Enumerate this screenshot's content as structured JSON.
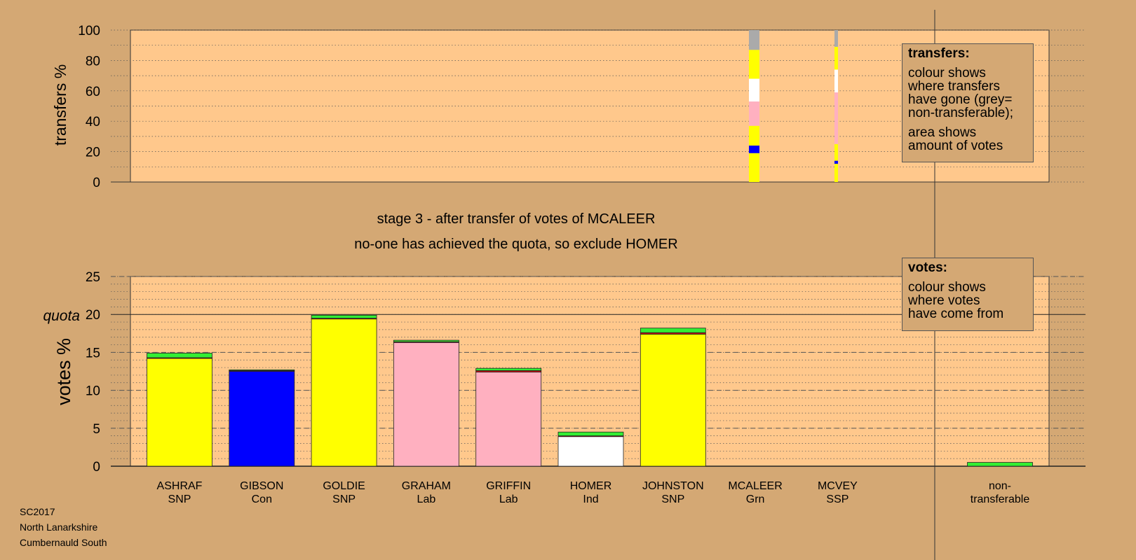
{
  "colors": {
    "background": "#d4a874",
    "plot_area": "#ffc88c",
    "SNP": "#ffff00",
    "Con": "#0000ff",
    "Lab": "#ffb0c0",
    "Ind": "#ffffff",
    "Grn": "#33ee33",
    "SSP": "#cc1111",
    "non_transferable": "#aaaaaa"
  },
  "stage_title": "stage 3 - after transfer of votes of MCALEER",
  "stage_subtitle": "no-one has achieved the quota, so exclude HOMER",
  "transfers_legend": {
    "title": "transfers:",
    "lines": [
      "colour shows",
      "where transfers",
      "have gone (grey=",
      "non-transferable);"
    ],
    "lines2": [
      "area shows",
      "amount of votes"
    ]
  },
  "votes_legend": {
    "title": "votes:",
    "lines": [
      "colour shows",
      "where votes",
      "have come from"
    ]
  },
  "footer": [
    "SC2017",
    "North Lanarkshire",
    "Cumbernauld South"
  ],
  "chart_data": [
    {
      "type": "bar",
      "ylabel": "transfers %",
      "ylim": [
        0,
        100
      ],
      "yticks": [
        0,
        20,
        40,
        60,
        80,
        100
      ],
      "grid": "dotted",
      "columns": [
        {
          "candidate": "MCALEER",
          "note": "transfers of MCALEER (current stage)",
          "segments": [
            {
              "party": "SNP",
              "from": 0,
              "to": 19
            },
            {
              "party": "Con",
              "from": 19,
              "to": 24
            },
            {
              "party": "SNP",
              "from": 24,
              "to": 37
            },
            {
              "party": "Lab",
              "from": 37,
              "to": 53
            },
            {
              "party": "Ind",
              "from": 53,
              "to": 68
            },
            {
              "party": "SNP",
              "from": 68,
              "to": 87
            },
            {
              "party": "non_transferable",
              "from": 87,
              "to": 100
            }
          ]
        },
        {
          "candidate": "MCVEY",
          "note": "transfers of MCVEY (previous stage)",
          "segments": [
            {
              "party": "SNP",
              "from": 0,
              "to": 12
            },
            {
              "party": "Con",
              "from": 12,
              "to": 14
            },
            {
              "party": "SNP",
              "from": 14,
              "to": 25
            },
            {
              "party": "Lab",
              "from": 25,
              "to": 59
            },
            {
              "party": "Ind",
              "from": 59,
              "to": 74
            },
            {
              "party": "SNP",
              "from": 74,
              "to": 89
            },
            {
              "party": "non_transferable",
              "from": 89,
              "to": 100
            }
          ]
        }
      ]
    },
    {
      "type": "bar",
      "ylabel": "votes %",
      "ylim": [
        0,
        25
      ],
      "yticks": [
        0,
        5,
        10,
        15,
        20,
        25
      ],
      "quota": 20,
      "quota_label": "quota",
      "categories": [
        {
          "name": "ASHRAF",
          "party": "SNP",
          "segments": [
            {
              "party": "SNP",
              "value": 14.2
            },
            {
              "party": "SSP",
              "value": 0.1
            },
            {
              "party": "Grn",
              "value": 0.6
            }
          ]
        },
        {
          "name": "GIBSON",
          "party": "Con",
          "segments": [
            {
              "party": "Con",
              "value": 12.5
            },
            {
              "party": "SSP",
              "value": 0.1
            },
            {
              "party": "Grn",
              "value": 0.1
            }
          ]
        },
        {
          "name": "GOLDIE",
          "party": "SNP",
          "segments": [
            {
              "party": "SNP",
              "value": 19.4
            },
            {
              "party": "SSP",
              "value": 0.1
            },
            {
              "party": "Grn",
              "value": 0.4
            }
          ]
        },
        {
          "name": "GRAHAM",
          "party": "Lab",
          "segments": [
            {
              "party": "Lab",
              "value": 16.3
            },
            {
              "party": "SSP",
              "value": 0.1
            },
            {
              "party": "Grn",
              "value": 0.2
            }
          ]
        },
        {
          "name": "GRIFFIN",
          "party": "Lab",
          "segments": [
            {
              "party": "Lab",
              "value": 12.4
            },
            {
              "party": "SSP",
              "value": 0.2
            },
            {
              "party": "Grn",
              "value": 0.3
            }
          ]
        },
        {
          "name": "HOMER",
          "party": "Ind",
          "segments": [
            {
              "party": "Ind",
              "value": 3.9
            },
            {
              "party": "SSP",
              "value": 0.1
            },
            {
              "party": "Grn",
              "value": 0.5
            }
          ]
        },
        {
          "name": "JOHNSTON",
          "party": "SNP",
          "segments": [
            {
              "party": "SNP",
              "value": 17.4
            },
            {
              "party": "SSP",
              "value": 0.2
            },
            {
              "party": "Grn",
              "value": 0.6
            }
          ]
        },
        {
          "name": "MCALEER",
          "party": "Grn",
          "segments": []
        },
        {
          "name": "MCVEY",
          "party": "SSP",
          "segments": []
        },
        {
          "name": "non-\ntransferable",
          "party": "",
          "segments": [
            {
              "party": "Grn",
              "value": 0.5
            }
          ]
        }
      ]
    }
  ]
}
